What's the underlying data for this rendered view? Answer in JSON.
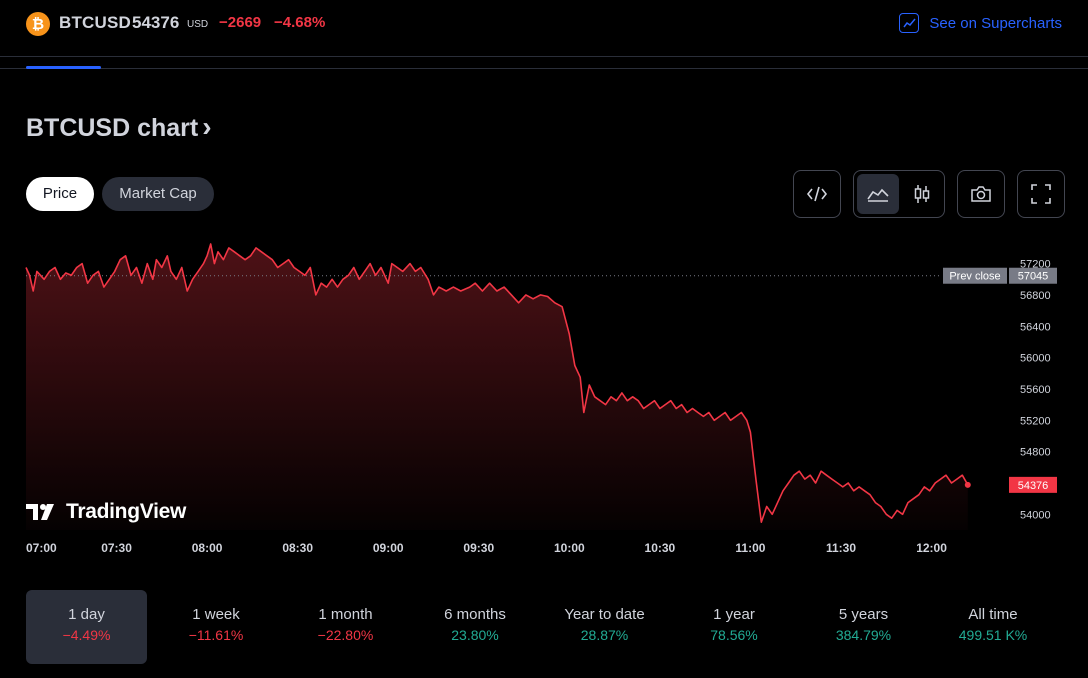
{
  "header": {
    "coin_glyph": "₿",
    "symbol": "BTCUSD",
    "price": "54376",
    "currency": "USD",
    "change": "−2669",
    "change_percent": "−4.68%",
    "supercharts_label": "See on Supercharts",
    "supercharts_icon": "chart-line-icon"
  },
  "title": {
    "text": "BTCUSD chart",
    "chevron": "›"
  },
  "pills": [
    {
      "label": "Price",
      "active": true
    },
    {
      "label": "Market Cap",
      "active": false
    }
  ],
  "toolbar": {
    "embed_icon": "embed-code-icon",
    "area_chart_icon": "area-chart-icon",
    "candles_icon": "candlestick-icon",
    "camera_icon": "camera-icon",
    "fullscreen_icon": "fullscreen-icon"
  },
  "watermark": "TradingView",
  "colors": {
    "line": "#f23645",
    "prev_close_badge": "#787b86",
    "last_price_badge": "#f23645",
    "accent": "#2962ff",
    "positive": "#22ab94",
    "negative": "#f23645"
  },
  "chart_data": {
    "type": "area",
    "x_ticks": [
      "07:00",
      "07:30",
      "08:00",
      "08:30",
      "09:00",
      "09:30",
      "10:00",
      "10:30",
      "11:00",
      "11:30",
      "12:00"
    ],
    "y_ticks": [
      54000,
      54400,
      54800,
      55200,
      55600,
      56000,
      56400,
      56800,
      57200
    ],
    "ylim": [
      53800,
      57450
    ],
    "xlim_hours": [
      7.0,
      12.4
    ],
    "prev_close": {
      "label": "Prev close",
      "value": 57045
    },
    "last_price": 54376,
    "points": [
      [
        7.0,
        57150
      ],
      [
        7.02,
        57050
      ],
      [
        7.04,
        56850
      ],
      [
        7.06,
        57100
      ],
      [
        7.08,
        57050
      ],
      [
        7.1,
        57000
      ],
      [
        7.13,
        57100
      ],
      [
        7.16,
        57150
      ],
      [
        7.19,
        57000
      ],
      [
        7.22,
        57080
      ],
      [
        7.25,
        57050
      ],
      [
        7.28,
        57150
      ],
      [
        7.31,
        57200
      ],
      [
        7.34,
        56950
      ],
      [
        7.37,
        57050
      ],
      [
        7.4,
        57100
      ],
      [
        7.43,
        56900
      ],
      [
        7.46,
        57000
      ],
      [
        7.49,
        57100
      ],
      [
        7.52,
        57250
      ],
      [
        7.55,
        57300
      ],
      [
        7.58,
        57050
      ],
      [
        7.61,
        57150
      ],
      [
        7.64,
        56950
      ],
      [
        7.67,
        57200
      ],
      [
        7.7,
        57000
      ],
      [
        7.72,
        57250
      ],
      [
        7.75,
        57150
      ],
      [
        7.78,
        57300
      ],
      [
        7.8,
        57100
      ],
      [
        7.83,
        57000
      ],
      [
        7.86,
        57150
      ],
      [
        7.89,
        56850
      ],
      [
        7.92,
        57000
      ],
      [
        7.95,
        57100
      ],
      [
        7.98,
        57200
      ],
      [
        8.0,
        57300
      ],
      [
        8.02,
        57450
      ],
      [
        8.04,
        57200
      ],
      [
        8.06,
        57350
      ],
      [
        8.09,
        57250
      ],
      [
        8.12,
        57400
      ],
      [
        8.15,
        57350
      ],
      [
        8.18,
        57300
      ],
      [
        8.21,
        57250
      ],
      [
        8.24,
        57300
      ],
      [
        8.27,
        57400
      ],
      [
        8.3,
        57350
      ],
      [
        8.33,
        57300
      ],
      [
        8.36,
        57250
      ],
      [
        8.39,
        57150
      ],
      [
        8.42,
        57200
      ],
      [
        8.45,
        57250
      ],
      [
        8.48,
        57150
      ],
      [
        8.51,
        57100
      ],
      [
        8.54,
        57050
      ],
      [
        8.57,
        57150
      ],
      [
        8.6,
        56800
      ],
      [
        8.63,
        56950
      ],
      [
        8.66,
        56900
      ],
      [
        8.69,
        57000
      ],
      [
        8.72,
        56900
      ],
      [
        8.75,
        57000
      ],
      [
        8.78,
        57050
      ],
      [
        8.81,
        57150
      ],
      [
        8.84,
        57000
      ],
      [
        8.87,
        57100
      ],
      [
        8.9,
        57200
      ],
      [
        8.93,
        57050
      ],
      [
        8.96,
        57150
      ],
      [
        9.0,
        56950
      ],
      [
        9.02,
        57200
      ],
      [
        9.05,
        57150
      ],
      [
        9.08,
        57100
      ],
      [
        9.12,
        57200
      ],
      [
        9.15,
        57100
      ],
      [
        9.18,
        57150
      ],
      [
        9.22,
        57000
      ],
      [
        9.25,
        56800
      ],
      [
        9.28,
        56900
      ],
      [
        9.32,
        56850
      ],
      [
        9.36,
        56900
      ],
      [
        9.4,
        56850
      ],
      [
        9.45,
        56900
      ],
      [
        9.48,
        56950
      ],
      [
        9.52,
        56850
      ],
      [
        9.56,
        56950
      ],
      [
        9.6,
        56850
      ],
      [
        9.64,
        56900
      ],
      [
        9.68,
        56800
      ],
      [
        9.72,
        56700
      ],
      [
        9.76,
        56800
      ],
      [
        9.8,
        56750
      ],
      [
        9.84,
        56800
      ],
      [
        9.88,
        56780
      ],
      [
        9.92,
        56700
      ],
      [
        9.96,
        56650
      ],
      [
        10.0,
        56300
      ],
      [
        10.03,
        55900
      ],
      [
        10.06,
        55750
      ],
      [
        10.08,
        55300
      ],
      [
        10.11,
        55650
      ],
      [
        10.14,
        55500
      ],
      [
        10.17,
        55450
      ],
      [
        10.2,
        55400
      ],
      [
        10.23,
        55500
      ],
      [
        10.26,
        55450
      ],
      [
        10.29,
        55550
      ],
      [
        10.32,
        55450
      ],
      [
        10.35,
        55500
      ],
      [
        10.38,
        55450
      ],
      [
        10.41,
        55350
      ],
      [
        10.44,
        55400
      ],
      [
        10.47,
        55450
      ],
      [
        10.5,
        55350
      ],
      [
        10.53,
        55400
      ],
      [
        10.56,
        55450
      ],
      [
        10.59,
        55350
      ],
      [
        10.62,
        55400
      ],
      [
        10.65,
        55300
      ],
      [
        10.68,
        55350
      ],
      [
        10.71,
        55300
      ],
      [
        10.74,
        55250
      ],
      [
        10.77,
        55300
      ],
      [
        10.8,
        55200
      ],
      [
        10.83,
        55250
      ],
      [
        10.86,
        55300
      ],
      [
        10.89,
        55200
      ],
      [
        10.92,
        55250
      ],
      [
        10.95,
        55300
      ],
      [
        10.98,
        55200
      ],
      [
        11.0,
        55050
      ],
      [
        11.03,
        54450
      ],
      [
        11.06,
        53900
      ],
      [
        11.09,
        54100
      ],
      [
        11.12,
        54000
      ],
      [
        11.15,
        54150
      ],
      [
        11.18,
        54300
      ],
      [
        11.21,
        54400
      ],
      [
        11.24,
        54500
      ],
      [
        11.27,
        54550
      ],
      [
        11.3,
        54450
      ],
      [
        11.33,
        54500
      ],
      [
        11.36,
        54400
      ],
      [
        11.39,
        54550
      ],
      [
        11.42,
        54500
      ],
      [
        11.45,
        54450
      ],
      [
        11.48,
        54400
      ],
      [
        11.51,
        54350
      ],
      [
        11.54,
        54400
      ],
      [
        11.57,
        54300
      ],
      [
        11.6,
        54350
      ],
      [
        11.63,
        54300
      ],
      [
        11.66,
        54250
      ],
      [
        11.69,
        54150
      ],
      [
        11.72,
        54100
      ],
      [
        11.75,
        54000
      ],
      [
        11.78,
        53950
      ],
      [
        11.81,
        54050
      ],
      [
        11.84,
        54000
      ],
      [
        11.87,
        54150
      ],
      [
        11.9,
        54200
      ],
      [
        11.93,
        54250
      ],
      [
        11.96,
        54350
      ],
      [
        11.99,
        54300
      ],
      [
        12.02,
        54400
      ],
      [
        12.05,
        54450
      ],
      [
        12.08,
        54500
      ],
      [
        12.11,
        54400
      ],
      [
        12.14,
        54450
      ],
      [
        12.17,
        54500
      ],
      [
        12.2,
        54376
      ]
    ]
  },
  "periods": [
    {
      "label": "1 day",
      "value": "−4.49%",
      "sign": "neg",
      "active": true
    },
    {
      "label": "1 week",
      "value": "−11.61%",
      "sign": "neg",
      "active": false
    },
    {
      "label": "1 month",
      "value": "−22.80%",
      "sign": "neg",
      "active": false
    },
    {
      "label": "6 months",
      "value": "23.80%",
      "sign": "pos",
      "active": false
    },
    {
      "label": "Year to date",
      "value": "28.87%",
      "sign": "pos",
      "active": false
    },
    {
      "label": "1 year",
      "value": "78.56%",
      "sign": "pos",
      "active": false
    },
    {
      "label": "5 years",
      "value": "384.79%",
      "sign": "pos",
      "active": false
    },
    {
      "label": "All time",
      "value": "499.51 K%",
      "sign": "pos",
      "active": false
    }
  ]
}
